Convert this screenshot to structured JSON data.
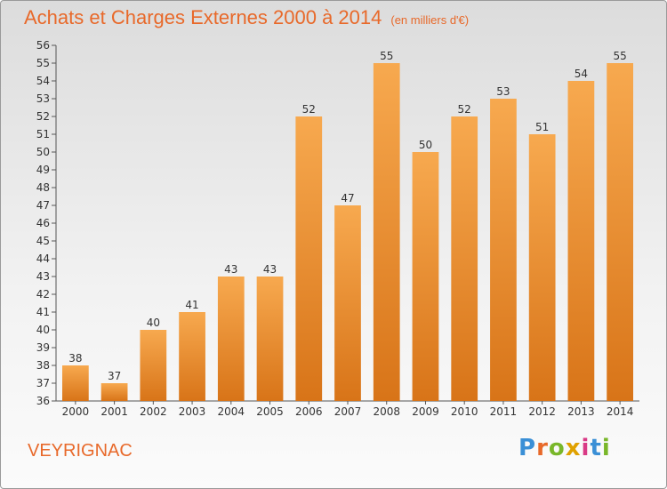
{
  "title": "Achats et Charges Externes 2000 à 2014",
  "unit": "(en milliers d'€)",
  "commune": "VEYRIGNAC",
  "logo": {
    "text": "Proxiti",
    "letter_colors": [
      "#3a8fd6",
      "#e8692a",
      "#79b72a",
      "#e0a100",
      "#d93a86",
      "#3a8fd6",
      "#79b72a"
    ]
  },
  "colors": {
    "accent": "#e8692a",
    "bar_top": "#f7a94f",
    "bar_bottom": "#d87418"
  },
  "chart_data": {
    "type": "bar",
    "categories": [
      "2000",
      "2001",
      "2002",
      "2003",
      "2004",
      "2005",
      "2006",
      "2007",
      "2008",
      "2009",
      "2010",
      "2011",
      "2012",
      "2013",
      "2014"
    ],
    "values": [
      38,
      37,
      40,
      41,
      43,
      43,
      52,
      47,
      55,
      50,
      52,
      53,
      51,
      54,
      55
    ],
    "ylim": [
      36,
      56
    ],
    "yticks": [
      36,
      37,
      38,
      39,
      40,
      41,
      42,
      43,
      44,
      45,
      46,
      47,
      48,
      49,
      50,
      51,
      52,
      53,
      54,
      55,
      56
    ],
    "grid": false,
    "xlabel": "",
    "ylabel": ""
  }
}
